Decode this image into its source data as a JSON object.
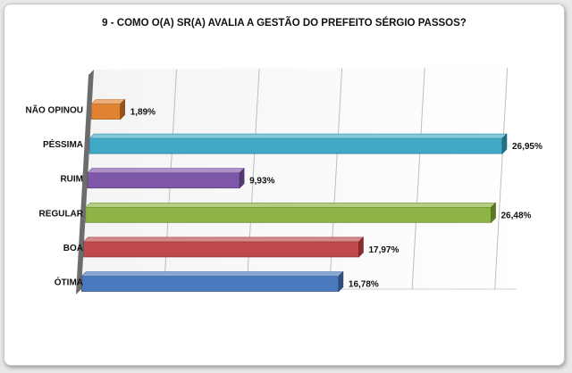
{
  "chart_data": {
    "type": "bar",
    "orientation": "horizontal",
    "style": "3d",
    "title": "9 - COMO O(A) SR(A) AVALIA A GESTÃO DO PREFEITO SÉRGIO PASSOS?",
    "categories": [
      "NÃO OPINOU",
      "PÉSSIMA",
      "RUIM",
      "REGULAR",
      "BOA",
      "ÓTIMA"
    ],
    "values": [
      1.89,
      26.95,
      9.93,
      26.48,
      17.97,
      16.78
    ],
    "value_labels": [
      "1,89%",
      "26,95%",
      "9,93%",
      "26,48%",
      "17,97%",
      "16,78%"
    ],
    "colors": [
      "#e0822f",
      "#3fa9c6",
      "#7f57a8",
      "#8db444",
      "#c0494b",
      "#4a79bd"
    ],
    "xlim": [
      0,
      27
    ],
    "grid": true,
    "legend": "none"
  }
}
